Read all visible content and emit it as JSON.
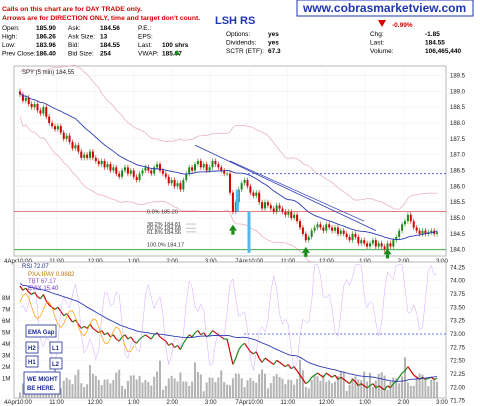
{
  "banner": {
    "url": "www.cobrasmarketview.com"
  },
  "disclaimer": {
    "line1": "Calls on this chart are for DAY TRADE only.",
    "line2": "Arrows are for DIRECTION ONLY, time and target don't count."
  },
  "symbol": "LSH RS",
  "quote": {
    "left": [
      {
        "label": "Open:",
        "value": "185.90"
      },
      {
        "label": "High:",
        "value": "186.26"
      },
      {
        "label": "Low:",
        "value": "183.96"
      },
      {
        "label": "Prev Close:",
        "value": "186.40"
      }
    ],
    "mid": [
      {
        "label": "Ask:",
        "value": "184.56"
      },
      {
        "label": "Ask Size:",
        "value": "13"
      },
      {
        "label": "Bid:",
        "value": "184.55"
      },
      {
        "label": "Bid Size:",
        "value": "254"
      }
    ],
    "mid2": [
      {
        "label": "P.E.:",
        "value": ""
      },
      {
        "label": "EPS:",
        "value": ""
      },
      {
        "label": "Last:",
        "value": "100 shrs"
      },
      {
        "label": "VWAP:",
        "value": "185.07"
      }
    ],
    "right": [
      {
        "label": "Options:",
        "value": "yes"
      },
      {
        "label": "Dividends:",
        "value": "yes"
      },
      {
        "label": "SCTR (ETF):",
        "value": "67.3"
      }
    ],
    "far": [
      {
        "label": "Chg:",
        "value": "-1.85"
      },
      {
        "label": "Last:",
        "value": "184.55"
      },
      {
        "label": "Volume:",
        "value": "106,465,440"
      }
    ],
    "pct_change": "-0.99%",
    "last_arrow": "up-arrow-icon",
    "down_arrow": "down-triangle-icon"
  },
  "colors": {
    "up": "#1a8a1a",
    "down": "#d40000",
    "banner": "#1f35b5",
    "ma": "#2b3bb5",
    "bb": "#e8b4c4",
    "fib_support": "#2aa02a",
    "fib_resist": "#d03030",
    "prev_close": "#3d4dd6",
    "vol": "#9b9b9b",
    "rsi_pxa": "#ff9a00",
    "rsi_tbt": "#b080d8",
    "rsi_evix": "#b060ff"
  },
  "chart_data": [
    {
      "type": "candlestick",
      "title": "SPY (5 min) 184.55",
      "ylim": [
        183.8,
        189.8
      ],
      "yticks": [
        "189.5",
        "189.0",
        "188.5",
        "188.0",
        "187.5",
        "187.0",
        "186.5",
        "186.0",
        "185.5",
        "185.0",
        "184.5",
        "184.0"
      ],
      "x_labels": [
        "4Apr10:00",
        "11:00",
        "12:00",
        "1:00",
        "2:00",
        "3:00",
        "7Apr10:00",
        "11:00",
        "12:00",
        "1:00",
        "2:00",
        "3:00"
      ],
      "bars": 144,
      "ohlc_close": [
        188.9,
        188.7,
        188.8,
        188.6,
        188.5,
        188.6,
        188.4,
        188.3,
        188.5,
        188.2,
        188.0,
        187.9,
        187.8,
        187.9,
        187.7,
        187.5,
        187.6,
        187.4,
        187.2,
        187.3,
        187.1,
        186.9,
        187.0,
        186.9,
        187.1,
        186.9,
        186.8,
        186.7,
        186.8,
        186.6,
        186.7,
        186.5,
        186.6,
        186.4,
        186.3,
        186.5,
        186.6,
        186.4,
        186.5,
        186.3,
        186.2,
        186.4,
        186.5,
        186.6,
        186.5,
        186.4,
        186.6,
        186.7,
        186.5,
        186.4,
        186.3,
        186.1,
        186.2,
        186.0,
        186.1,
        185.9,
        186.2,
        186.4,
        186.6,
        186.5,
        186.7,
        186.8,
        186.6,
        186.7,
        186.5,
        186.6,
        186.8,
        186.7,
        186.6,
        186.5,
        186.4,
        186.4,
        185.8,
        185.2,
        185.5,
        185.9,
        186.1,
        186.2,
        186.0,
        185.8,
        185.7,
        185.8,
        185.5,
        185.3,
        185.5,
        185.4,
        185.3,
        185.2,
        185.4,
        185.3,
        185.2,
        185.1,
        185.2,
        185.0,
        185.1,
        184.9,
        184.7,
        184.5,
        184.3,
        184.4,
        184.6,
        184.7,
        184.8,
        184.7,
        184.6,
        184.8,
        184.7,
        184.6,
        184.7,
        184.5,
        184.6,
        184.5,
        184.4,
        184.3,
        184.5,
        184.4,
        184.2,
        184.3,
        184.2,
        184.1,
        184.2,
        184.3,
        184.1,
        184.2,
        184.1,
        184.0,
        184.2,
        184.1,
        184.3,
        184.4,
        184.6,
        184.8,
        184.9,
        185.1,
        184.9,
        184.7,
        184.6,
        184.5,
        184.6,
        184.5,
        184.55,
        184.6,
        184.5,
        184.55
      ],
      "prev_close": 186.4,
      "fib_levels": [
        {
          "label": "0.0%",
          "value": "185.20",
          "y": 185.2
        },
        {
          "label": "38.2%",
          "value": "184.81",
          "y": 184.81
        },
        {
          "label": "50.0%",
          "value": "184.68",
          "y": 184.68
        },
        {
          "label": "61.8%",
          "value": "184.56",
          "y": 184.56
        },
        {
          "label": "100.0%",
          "value": "184.17",
          "y": 184.17
        }
      ],
      "support": 184.0,
      "arrows": [
        "up",
        "up",
        "up"
      ]
    },
    {
      "type": "line",
      "title": "RSI 72.07",
      "legend": [
        "PXA:IPAY 0.9882",
        "TBT 67.17",
        "EVIX 15.40"
      ],
      "ylim": [
        71.8,
        74.35
      ],
      "yticks": [
        "74.25",
        "74.00",
        "73.75",
        "73.50",
        "73.25",
        "73.00",
        "72.75",
        "72.50",
        "72.25",
        "72.00",
        "71.75"
      ],
      "vol_ticks": [
        "8M",
        "7M",
        "6M",
        "5M",
        "4M",
        "3M",
        "2M",
        "1M"
      ],
      "x_labels": [
        "4Apr10:00",
        "11:00",
        "12:00",
        "1:00",
        "2:00",
        "3:00",
        "7Apr10:00",
        "11:00",
        "12:00",
        "1:00",
        "2:00",
        "3:00"
      ]
    }
  ],
  "legend_boxes": {
    "ema_gap": "EMA Gap",
    "h2": "H2",
    "l1": "L1",
    "h1": "H1",
    "l2": "L2",
    "note": "WE MIGHT BE HERE."
  }
}
